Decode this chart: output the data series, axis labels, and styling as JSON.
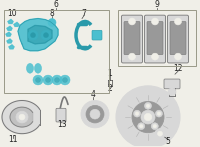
{
  "bg_color": "#f0efe8",
  "teal": "#4bbfcf",
  "teal_dark": "#2a9aaa",
  "teal_mid": "#3aafc0",
  "gray": "#b0b0b0",
  "gray_dark": "#777777",
  "gray_light": "#d8d8d8",
  "gray_mid": "#999999",
  "line_color": "#444444",
  "text_color": "#222222",
  "box_edge": "#999988"
}
